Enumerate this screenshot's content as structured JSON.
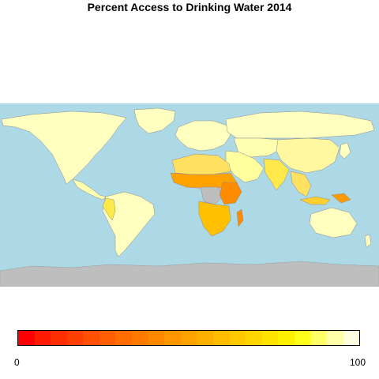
{
  "title": "Percent Access to Drinking Water 2014",
  "legend": {
    "min_label": "0",
    "max_label": "100",
    "colors": [
      "#ff0000",
      "#ff1a00",
      "#ff2e00",
      "#ff3f00",
      "#ff4f00",
      "#ff5e00",
      "#ff6c00",
      "#ff7a00",
      "#ff8800",
      "#ff9500",
      "#ffa200",
      "#ffaf00",
      "#ffbc00",
      "#ffc900",
      "#ffd600",
      "#ffe300",
      "#fff000",
      "#ffff1a",
      "#ffff66",
      "#ffffaa",
      "#ffffe0"
    ]
  },
  "colors": {
    "ocean": "#add8e6",
    "land_high": "#ffffc0",
    "no_data": "#bebebe",
    "borders": "#8c8c8c"
  }
}
